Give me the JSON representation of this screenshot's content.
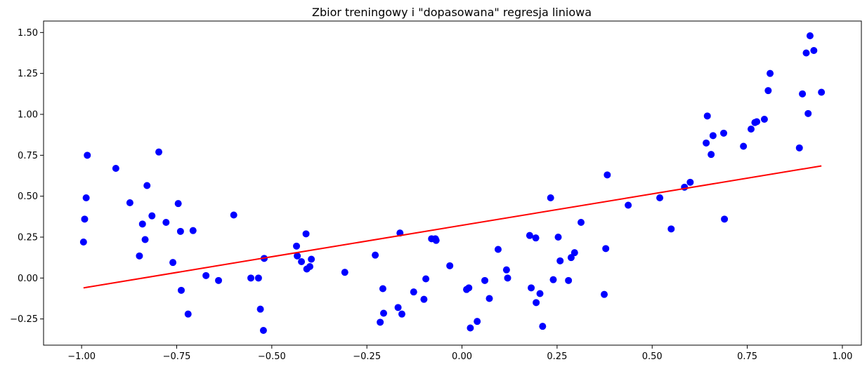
{
  "chart_data": {
    "type": "scatter",
    "title": "Zbior treningowy i \"dopasowana\" regresja liniowa",
    "xlabel": "",
    "ylabel": "",
    "xlim": [
      -1.1,
      1.05
    ],
    "ylim": [
      -0.41,
      1.57
    ],
    "grid": false,
    "x_ticks": [
      -1.0,
      -0.75,
      -0.5,
      -0.25,
      0.0,
      0.25,
      0.5,
      0.75,
      1.0
    ],
    "x_tick_labels": [
      "−1.00",
      "−0.75",
      "−0.50",
      "−0.25",
      "0.00",
      "0.25",
      "0.50",
      "0.75",
      "1.00"
    ],
    "y_ticks": [
      -0.25,
      0.0,
      0.25,
      0.5,
      0.75,
      1.0,
      1.25,
      1.5
    ],
    "y_tick_labels": [
      "−0.25",
      "0.00",
      "0.25",
      "0.50",
      "0.75",
      "1.00",
      "1.25",
      "1.50"
    ],
    "series": [
      {
        "type": "scatter",
        "color": "#0000ff",
        "points": [
          [
            -0.995,
            0.22
          ],
          [
            -0.992,
            0.36
          ],
          [
            -0.988,
            0.49
          ],
          [
            -0.985,
            0.75
          ],
          [
            -0.91,
            0.67
          ],
          [
            -0.873,
            0.46
          ],
          [
            -0.848,
            0.135
          ],
          [
            -0.84,
            0.33
          ],
          [
            -0.833,
            0.235
          ],
          [
            -0.828,
            0.565
          ],
          [
            -0.815,
            0.38
          ],
          [
            -0.797,
            0.77
          ],
          [
            -0.778,
            0.34
          ],
          [
            -0.76,
            0.095
          ],
          [
            -0.746,
            0.455
          ],
          [
            -0.74,
            0.285
          ],
          [
            -0.738,
            -0.075
          ],
          [
            -0.72,
            -0.22
          ],
          [
            -0.707,
            0.29
          ],
          [
            -0.673,
            0.015
          ],
          [
            -0.64,
            -0.015
          ],
          [
            -0.6,
            0.385
          ],
          [
            -0.555,
            0.0
          ],
          [
            -0.535,
            0.0
          ],
          [
            -0.53,
            -0.19
          ],
          [
            -0.522,
            -0.32
          ],
          [
            -0.52,
            0.12
          ],
          [
            -0.435,
            0.195
          ],
          [
            -0.433,
            0.135
          ],
          [
            -0.422,
            0.1
          ],
          [
            -0.41,
            0.27
          ],
          [
            -0.408,
            0.055
          ],
          [
            -0.4,
            0.07
          ],
          [
            -0.396,
            0.115
          ],
          [
            -0.308,
            0.035
          ],
          [
            -0.228,
            0.14
          ],
          [
            -0.215,
            -0.27
          ],
          [
            -0.208,
            -0.065
          ],
          [
            -0.206,
            -0.215
          ],
          [
            -0.168,
            -0.18
          ],
          [
            -0.163,
            0.275
          ],
          [
            -0.158,
            -0.22
          ],
          [
            -0.127,
            -0.085
          ],
          [
            -0.1,
            -0.13
          ],
          [
            -0.095,
            -0.005
          ],
          [
            -0.08,
            0.24
          ],
          [
            -0.07,
            0.24
          ],
          [
            -0.068,
            0.23
          ],
          [
            -0.032,
            0.075
          ],
          [
            0.012,
            -0.07
          ],
          [
            0.018,
            -0.06
          ],
          [
            0.022,
            -0.305
          ],
          [
            0.04,
            -0.265
          ],
          [
            0.06,
            -0.015
          ],
          [
            0.072,
            -0.125
          ],
          [
            0.095,
            0.175
          ],
          [
            0.117,
            0.05
          ],
          [
            0.12,
            0.0
          ],
          [
            0.178,
            0.26
          ],
          [
            0.182,
            -0.06
          ],
          [
            0.194,
            0.245
          ],
          [
            0.195,
            -0.15
          ],
          [
            0.205,
            -0.095
          ],
          [
            0.212,
            -0.295
          ],
          [
            0.233,
            0.49
          ],
          [
            0.24,
            -0.01
          ],
          [
            0.253,
            0.25
          ],
          [
            0.258,
            0.105
          ],
          [
            0.28,
            -0.015
          ],
          [
            0.287,
            0.125
          ],
          [
            0.296,
            0.155
          ],
          [
            0.313,
            0.34
          ],
          [
            0.374,
            -0.1
          ],
          [
            0.378,
            0.18
          ],
          [
            0.382,
            0.63
          ],
          [
            0.437,
            0.445
          ],
          [
            0.52,
            0.49
          ],
          [
            0.55,
            0.3
          ],
          [
            0.585,
            0.555
          ],
          [
            0.6,
            0.585
          ],
          [
            0.642,
            0.825
          ],
          [
            0.645,
            0.99
          ],
          [
            0.655,
            0.755
          ],
          [
            0.66,
            0.87
          ],
          [
            0.688,
            0.885
          ],
          [
            0.69,
            0.36
          ],
          [
            0.74,
            0.805
          ],
          [
            0.76,
            0.91
          ],
          [
            0.77,
            0.95
          ],
          [
            0.775,
            0.955
          ],
          [
            0.795,
            0.97
          ],
          [
            0.805,
            1.145
          ],
          [
            0.81,
            1.25
          ],
          [
            0.887,
            0.795
          ],
          [
            0.895,
            1.125
          ],
          [
            0.905,
            1.375
          ],
          [
            0.91,
            1.005
          ],
          [
            0.915,
            1.48
          ],
          [
            0.925,
            1.39
          ],
          [
            0.945,
            1.135
          ]
        ]
      },
      {
        "type": "line",
        "color": "#ff0000",
        "x": [
          -0.995,
          0.945
        ],
        "y": [
          -0.06,
          0.685
        ]
      }
    ]
  }
}
